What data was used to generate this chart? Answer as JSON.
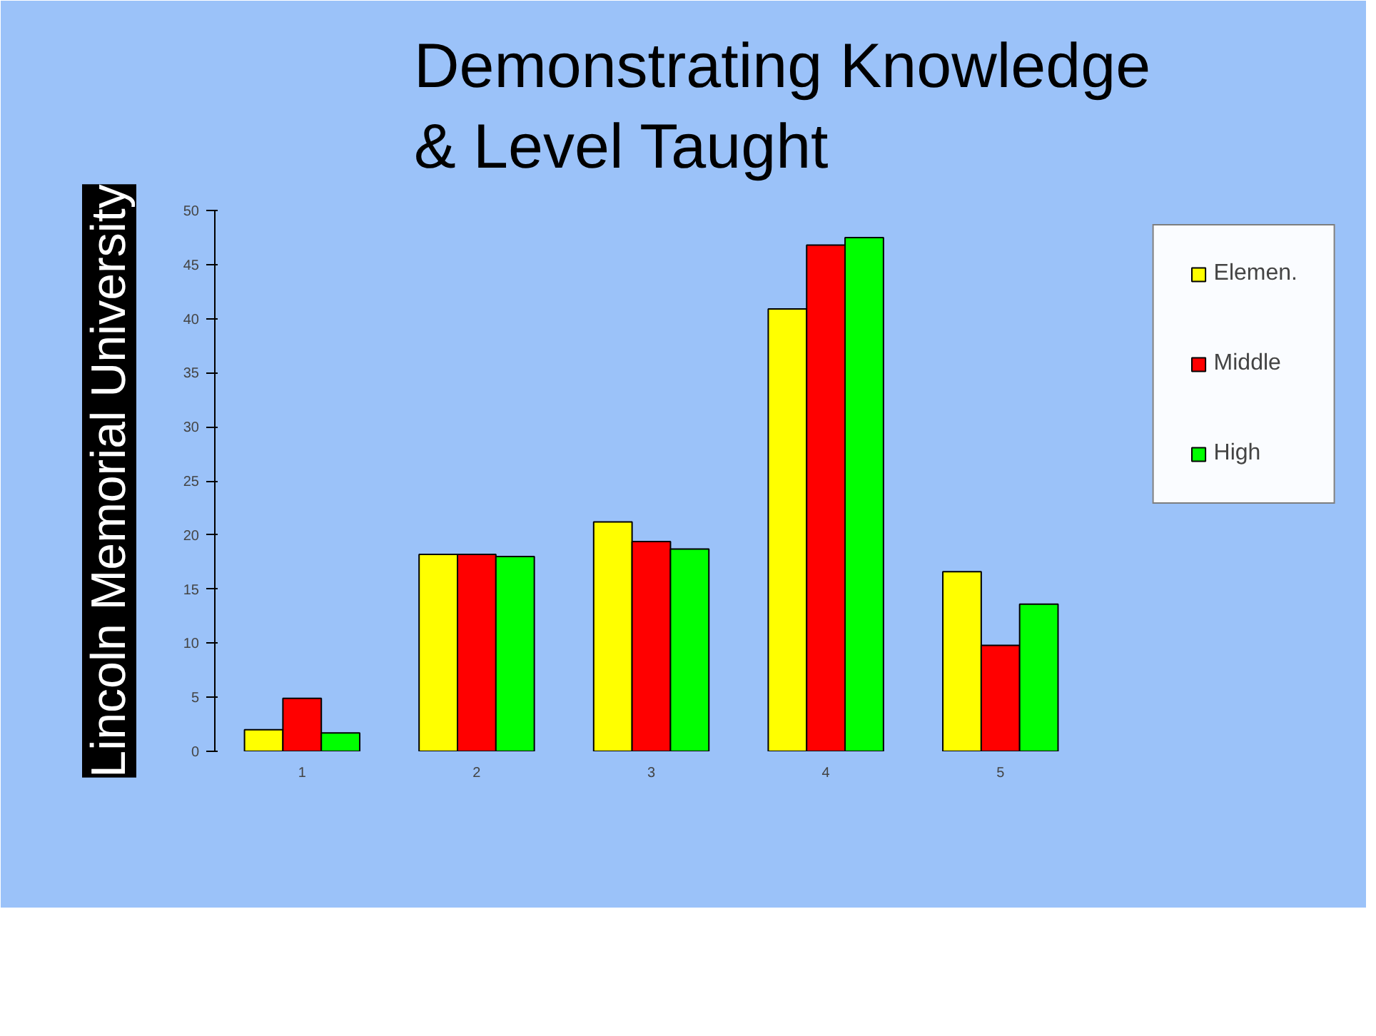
{
  "chart_data": {
    "type": "bar",
    "title": "Demonstrating Knowledge\n& Level Taught",
    "categories": [
      "1",
      "2",
      "3",
      "4",
      "5"
    ],
    "series": [
      {
        "name": "Elemen.",
        "color": "#ffff00",
        "values": [
          2,
          18.2,
          21.2,
          40.9,
          16.6
        ]
      },
      {
        "name": "Middle",
        "color": "#ff0000",
        "values": [
          4.9,
          18.2,
          19.4,
          46.8,
          9.8
        ]
      },
      {
        "name": "High",
        "color": "#00ff00",
        "values": [
          1.7,
          18,
          18.7,
          47.5,
          13.6
        ]
      }
    ],
    "ylim": [
      0,
      50
    ],
    "yticks": [
      0,
      5,
      10,
      15,
      20,
      25,
      30,
      35,
      40,
      45,
      50
    ],
    "grid": false,
    "legend": "right",
    "annotations": [
      "Lincoln Memorial University"
    ]
  }
}
